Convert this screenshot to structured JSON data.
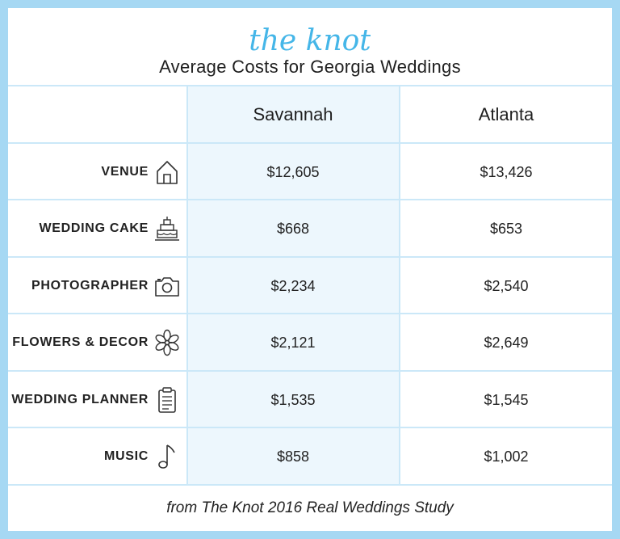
{
  "logo": "the knot",
  "title": "Average Costs for Georgia Weddings",
  "footer": "from The Knot 2016 Real Weddings Study",
  "colors": {
    "border": "#a6d8f3",
    "grid": "#cbe8f8",
    "highlight": "#edf7fd",
    "logo": "#45b6e8"
  },
  "chart_data": {
    "type": "table",
    "title": "Average Costs for Georgia Weddings",
    "columns": [
      "Savannah",
      "Atlanta"
    ],
    "rows": [
      {
        "label": "VENUE",
        "icon": "house-icon",
        "values": [
          "$12,605",
          "$13,426"
        ]
      },
      {
        "label": "WEDDING CAKE",
        "icon": "cake-icon",
        "values": [
          "$668",
          "$653"
        ]
      },
      {
        "label": "PHOTOGRAPHER",
        "icon": "camera-icon",
        "values": [
          "$2,234",
          "$2,540"
        ]
      },
      {
        "label": "FLOWERS & DECOR",
        "icon": "flower-icon",
        "values": [
          "$2,121",
          "$2,649"
        ]
      },
      {
        "label": "WEDDING PLANNER",
        "icon": "clipboard-icon",
        "values": [
          "$1,535",
          "$1,545"
        ]
      },
      {
        "label": "MUSIC",
        "icon": "music-note-icon",
        "values": [
          "$858",
          "$1,002"
        ]
      }
    ]
  }
}
